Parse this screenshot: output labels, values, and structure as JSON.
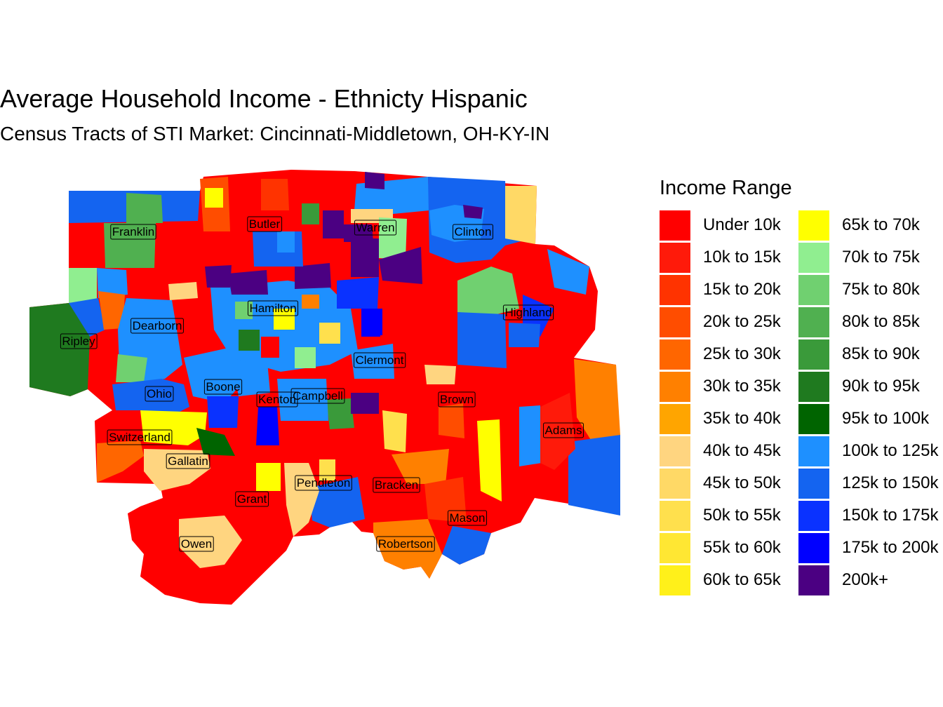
{
  "title": "Average Household Income - Ethnicty Hispanic",
  "subtitle": "Census Tracts of STI Market: Cincinnati-Middletown, OH-KY-IN",
  "legend": {
    "title": "Income Range",
    "items": [
      {
        "label": "Under 10k",
        "color": "#FF0000"
      },
      {
        "label": "10k to 15k",
        "color": "#FF1A0A"
      },
      {
        "label": "15k to 20k",
        "color": "#FF3300"
      },
      {
        "label": "20k to 25k",
        "color": "#FF4D00"
      },
      {
        "label": "25k to 30k",
        "color": "#FF6600"
      },
      {
        "label": "30k to 35k",
        "color": "#FF8000"
      },
      {
        "label": "35k to 40k",
        "color": "#FFA500"
      },
      {
        "label": "40k to 45k",
        "color": "#FFD580"
      },
      {
        "label": "45k to 50k",
        "color": "#FFD966"
      },
      {
        "label": "50k to 55k",
        "color": "#FFE04D"
      },
      {
        "label": "55k to 60k",
        "color": "#FFE733"
      },
      {
        "label": "60k to 65k",
        "color": "#FFF01A"
      },
      {
        "label": "65k to 70k",
        "color": "#FFFF00"
      },
      {
        "label": "70k to 75k",
        "color": "#90EE90"
      },
      {
        "label": "75k to 80k",
        "color": "#70D070"
      },
      {
        "label": "80k to 85k",
        "color": "#50B050"
      },
      {
        "label": "85k to 90k",
        "color": "#3A9A3A"
      },
      {
        "label": "90k to 95k",
        "color": "#1F7A1F"
      },
      {
        "label": "95k to 100k",
        "color": "#006400"
      },
      {
        "label": "100k to 125k",
        "color": "#1E90FF"
      },
      {
        "label": "125k to 150k",
        "color": "#1464F0"
      },
      {
        "label": "150k to 175k",
        "color": "#0A32FF"
      },
      {
        "label": "175k to 200k",
        "color": "#0000FF"
      },
      {
        "label": "200k+",
        "color": "#4B0082"
      }
    ]
  },
  "counties": [
    {
      "name": "Franklin"
    },
    {
      "name": "Butler"
    },
    {
      "name": "Warren"
    },
    {
      "name": "Clinton"
    },
    {
      "name": "Hamilton"
    },
    {
      "name": "Highland"
    },
    {
      "name": "Dearborn"
    },
    {
      "name": "Ripley"
    },
    {
      "name": "Clermont"
    },
    {
      "name": "Ohio"
    },
    {
      "name": "Boone"
    },
    {
      "name": "Kenton"
    },
    {
      "name": "Campbell"
    },
    {
      "name": "Brown"
    },
    {
      "name": "Switzerland"
    },
    {
      "name": "Adams"
    },
    {
      "name": "Gallatin"
    },
    {
      "name": "Pendleton"
    },
    {
      "name": "Bracken"
    },
    {
      "name": "Grant"
    },
    {
      "name": "Mason"
    },
    {
      "name": "Owen"
    },
    {
      "name": "Robertson"
    }
  ]
}
